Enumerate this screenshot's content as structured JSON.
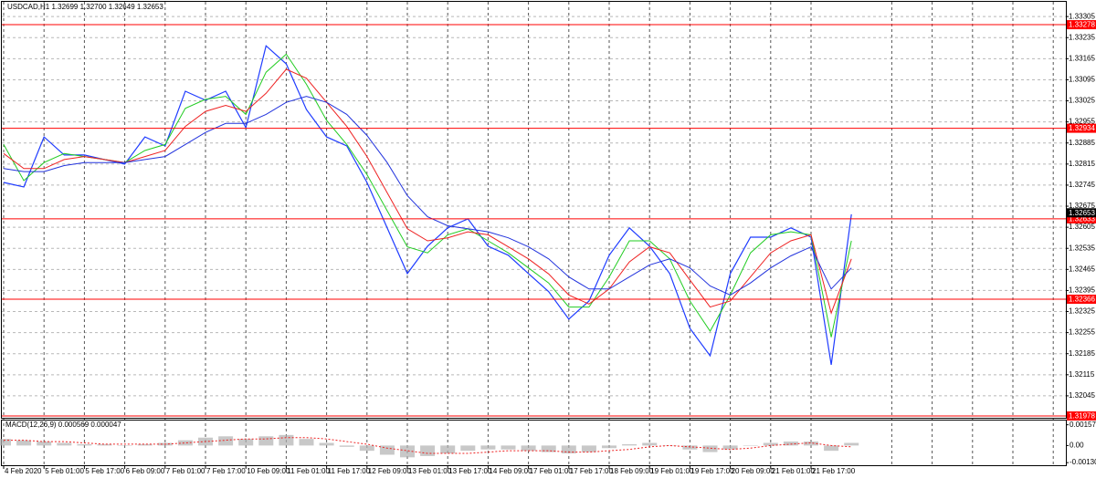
{
  "chart_data": {
    "type": "line",
    "title": "USDCAD,H1  1.32699 1.32700 1.32649 1.32653",
    "last_price": 1.32653,
    "categories": [
      "4 Feb 2020",
      null,
      "5 Feb 01:00",
      null,
      "5 Feb 17:00",
      null,
      "6 Feb 09:00",
      null,
      "7 Feb 01:00",
      null,
      "7 Feb 17:00",
      null,
      "10 Feb 09:00",
      null,
      "11 Feb 01:00",
      null,
      "11 Feb 17:00",
      null,
      "12 Feb 09:00",
      null,
      "13 Feb 01:00",
      null,
      "13 Feb 17:00",
      null,
      "14 Feb 09:00",
      null,
      "17 Feb 01:00",
      null,
      "17 Feb 17:00",
      null,
      "18 Feb 09:00",
      null,
      "19 Feb 01:00",
      null,
      "19 Feb 17:00",
      null,
      "20 Feb 09:00",
      null,
      "21 Feb 01:00",
      null,
      "21 Feb 17:00",
      null,
      null
    ],
    "series": [
      {
        "name": "USDCAD",
        "color": "#1f3cff",
        "width": 1.2,
        "values": [
          1.32754,
          1.32739,
          1.32905,
          1.32845,
          1.32845,
          1.3283,
          1.32815,
          1.32905,
          1.32875,
          1.33057,
          1.33027,
          1.33057,
          1.32936,
          1.33208,
          1.33148,
          1.32996,
          1.32905,
          1.32875,
          1.32754,
          1.32603,
          1.32451,
          1.32542,
          1.32603,
          1.32633,
          1.32542,
          1.32512,
          1.32451,
          1.32391,
          1.323,
          1.3236,
          1.32512,
          1.32603,
          1.32542,
          1.32451,
          1.32269,
          1.32178,
          1.32451,
          1.32572,
          1.32572,
          1.32603,
          1.32572,
          1.32148,
          1.32648
        ]
      },
      {
        "color": "#22cc22",
        "width": 1,
        "values": [
          1.3288,
          1.3276,
          1.3282,
          1.3285,
          1.3284,
          1.3283,
          1.3282,
          1.3286,
          1.3288,
          1.33,
          1.3303,
          1.3304,
          1.3298,
          1.3312,
          1.3318,
          1.3308,
          1.3296,
          1.3288,
          1.3278,
          1.3266,
          1.3254,
          1.3252,
          1.3258,
          1.326,
          1.3256,
          1.3252,
          1.3247,
          1.3242,
          1.3234,
          1.3234,
          1.3244,
          1.3256,
          1.3256,
          1.325,
          1.3236,
          1.3226,
          1.3238,
          1.3252,
          1.3258,
          1.3259,
          1.3258,
          1.3224,
          1.3256
        ]
      },
      {
        "color": "#ee2222",
        "width": 1,
        "values": [
          1.3285,
          1.328,
          1.328,
          1.3283,
          1.3284,
          1.3283,
          1.3282,
          1.3284,
          1.3286,
          1.3294,
          1.3299,
          1.3301,
          1.3299,
          1.3305,
          1.3313,
          1.331,
          1.3302,
          1.3294,
          1.3284,
          1.3272,
          1.326,
          1.3256,
          1.3257,
          1.3259,
          1.3258,
          1.3254,
          1.325,
          1.3245,
          1.3238,
          1.3235,
          1.324,
          1.3249,
          1.3254,
          1.3252,
          1.3243,
          1.3234,
          1.3236,
          1.3244,
          1.3252,
          1.3256,
          1.3258,
          1.3232,
          1.325
        ]
      },
      {
        "color": "#2233dd",
        "width": 1,
        "values": [
          1.328,
          1.3279,
          1.3279,
          1.3281,
          1.3282,
          1.3282,
          1.3282,
          1.3283,
          1.3284,
          1.3288,
          1.3292,
          1.3295,
          1.3295,
          1.3298,
          1.3302,
          1.3304,
          1.3302,
          1.3298,
          1.3291,
          1.3282,
          1.3271,
          1.3264,
          1.3261,
          1.326,
          1.3259,
          1.3257,
          1.3254,
          1.325,
          1.3244,
          1.324,
          1.324,
          1.3244,
          1.3248,
          1.325,
          1.3247,
          1.3241,
          1.3238,
          1.3242,
          1.3247,
          1.3251,
          1.3254,
          1.324,
          1.3247
        ]
      }
    ],
    "ylim": [
      1.31972,
      1.3336
    ],
    "yticks": [
      1.33305,
      1.33235,
      1.33165,
      1.33095,
      1.33025,
      1.32955,
      1.32885,
      1.32815,
      1.32745,
      1.32675,
      1.32605,
      1.32535,
      1.32465,
      1.32395,
      1.32325,
      1.32255,
      1.32185,
      1.32115,
      1.32045
    ],
    "levels": [
      1.33278,
      1.32934,
      1.32633,
      1.32366,
      1.31978
    ],
    "level_color": "#ff0000",
    "grid": true,
    "macd": {
      "title": "MACD(12,26,9) 0.000569 0.000047",
      "histogram_color": "#b0b0b0",
      "signal_color": "#ee2222",
      "histogram": [
        0.0005,
        0.0004,
        0.0003,
        0.0002,
        0.0001,
        0.0001,
        0,
        0.0001,
        0.0002,
        0.0004,
        0.0006,
        0.0007,
        0.0005,
        0.0007,
        0.0008,
        0.0005,
        0.0002,
        -0.0001,
        -0.0004,
        -0.0007,
        -0.0009,
        -0.0008,
        -0.0006,
        -0.0004,
        -0.0003,
        -0.0003,
        -0.0004,
        -0.0005,
        -0.0006,
        -0.0005,
        -0.0002,
        0.0001,
        0.0002,
        0,
        -0.0003,
        -0.0005,
        -0.0003,
        0,
        0.0002,
        0.0003,
        0.0003,
        -0.0004,
        0.0002
      ],
      "signal": [
        0.0004,
        0.0004,
        0.0003,
        0.0003,
        0.0002,
        0.0001,
        0.0001,
        0.0001,
        0.0001,
        0.0002,
        0.0003,
        0.0004,
        0.0005,
        0.0005,
        0.0006,
        0.0006,
        0.0005,
        0.0003,
        0.0001,
        -0.0002,
        -0.0004,
        -0.0006,
        -0.0006,
        -0.0006,
        -0.0005,
        -0.0004,
        -0.0004,
        -0.0004,
        -0.0005,
        -0.0005,
        -0.0004,
        -0.0003,
        -0.0001,
        0,
        -0.0001,
        -0.0002,
        -0.0003,
        -0.0002,
        0,
        0.0001,
        0.0002,
        0,
        -0.0001
      ],
      "ylim": [
        -0.0015,
        0.0019
      ],
      "yticks": [
        0.001576,
        {
          "value": 0,
          "label": "0.00"
        },
        -0.001301
      ]
    }
  }
}
